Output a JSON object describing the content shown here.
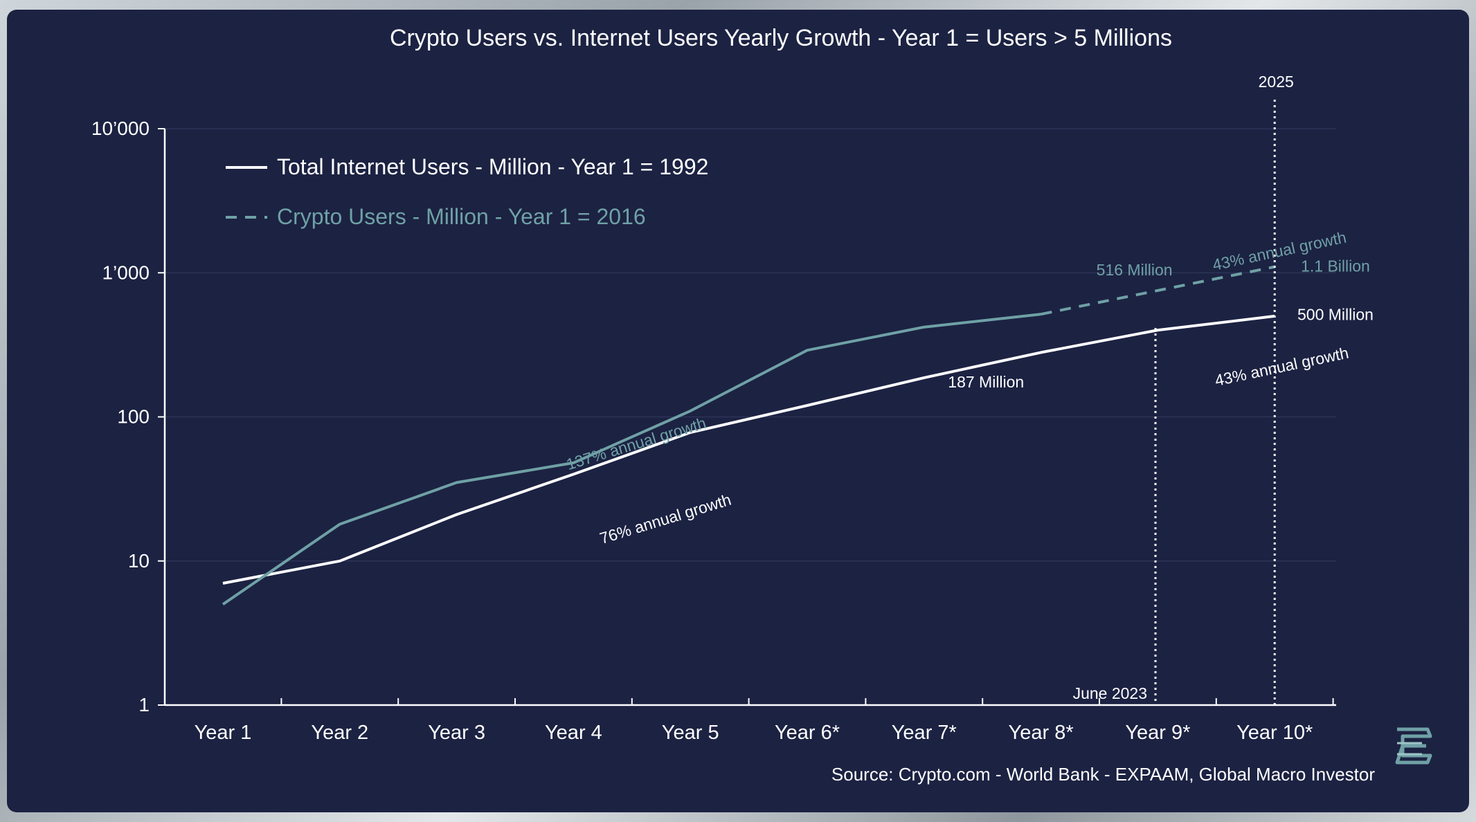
{
  "colors": {
    "background": "#1c2242",
    "internet": "#ffffff",
    "crypto": "#6fa1a6",
    "text": "#ffffff"
  },
  "chart_data": {
    "type": "line",
    "title": "Crypto Users vs. Internet Users Yearly Growth - Year 1 = Users > 5 Millions",
    "source": "Source: Crypto.com - World Bank - EXPAAM, Global Macro Investor",
    "categories": [
      "Year 1",
      "Year 2",
      "Year 3",
      "Year 4",
      "Year 5",
      "Year 6*",
      "Year 7*",
      "Year 8*",
      "Year 9*",
      "Year 10*"
    ],
    "y_scale": "log",
    "ylim": [
      1,
      10000
    ],
    "y_ticks": [
      1,
      10,
      100,
      1000,
      10000
    ],
    "y_tick_labels": [
      "1",
      "10",
      "100",
      "1’000",
      "10’000"
    ],
    "grid": true,
    "legend_position": "top-left",
    "series": [
      {
        "name": "Total Internet Users - Million - Year 1 = 1992",
        "style": "solid",
        "color": "#ffffff",
        "x": [
          "Year 1",
          "Year 2",
          "Year 3",
          "Year 4",
          "Year 5",
          "Year 6*",
          "Year 7*",
          "Year 8*",
          "Year 9*",
          "Year 10*"
        ],
        "values": [
          7,
          10,
          21,
          40,
          78,
          120,
          187,
          280,
          400,
          500
        ]
      },
      {
        "name": "Crypto Users - Million - Year 1 = 2016",
        "style": "solid-then-dashed",
        "color": "#6fa1a6",
        "x": [
          "Year 1",
          "Year 2",
          "Year 3",
          "Year 4",
          "Year 5",
          "Year 6*",
          "Year 7*",
          "Year 8*",
          "Year 10*"
        ],
        "values": [
          5,
          18,
          35,
          48,
          110,
          290,
          420,
          516,
          1100
        ],
        "dashed_from": "Year 8*"
      }
    ],
    "vlines": [
      {
        "x": 7.98,
        "label": "June 2023",
        "label_pos": "bottom"
      },
      {
        "x": 9.0,
        "label": "2025",
        "label_pos": "top"
      }
    ],
    "annotations": [
      {
        "text": "137% annual growth",
        "x": 3.55,
        "y": 60,
        "angle": -17,
        "color": "#6fa1a6",
        "size": 23
      },
      {
        "text": "76% annual growth",
        "x": 3.8,
        "y": 18,
        "angle": -17,
        "color": "#ffffff",
        "size": 23
      },
      {
        "text": "516 Million",
        "x": 7.8,
        "y": 960,
        "angle": 0,
        "color": "#6fa1a6",
        "size": 23
      },
      {
        "text": "43% annual growth",
        "x": 9.05,
        "y": 1300,
        "angle": -12,
        "color": "#6fa1a6",
        "size": 23
      },
      {
        "text": "1.1 Billion",
        "x": 9.52,
        "y": 1020,
        "angle": 0,
        "color": "#6fa1a6",
        "size": 23
      },
      {
        "text": "187 Million",
        "x": 6.53,
        "y": 160,
        "angle": 0,
        "color": "#ffffff",
        "size": 23
      },
      {
        "text": "43% annual growth",
        "x": 9.07,
        "y": 205,
        "angle": -12,
        "color": "#ffffff",
        "size": 23
      },
      {
        "text": "500 Million",
        "x": 9.52,
        "y": 470,
        "angle": 0,
        "color": "#ffffff",
        "size": 23
      }
    ]
  }
}
